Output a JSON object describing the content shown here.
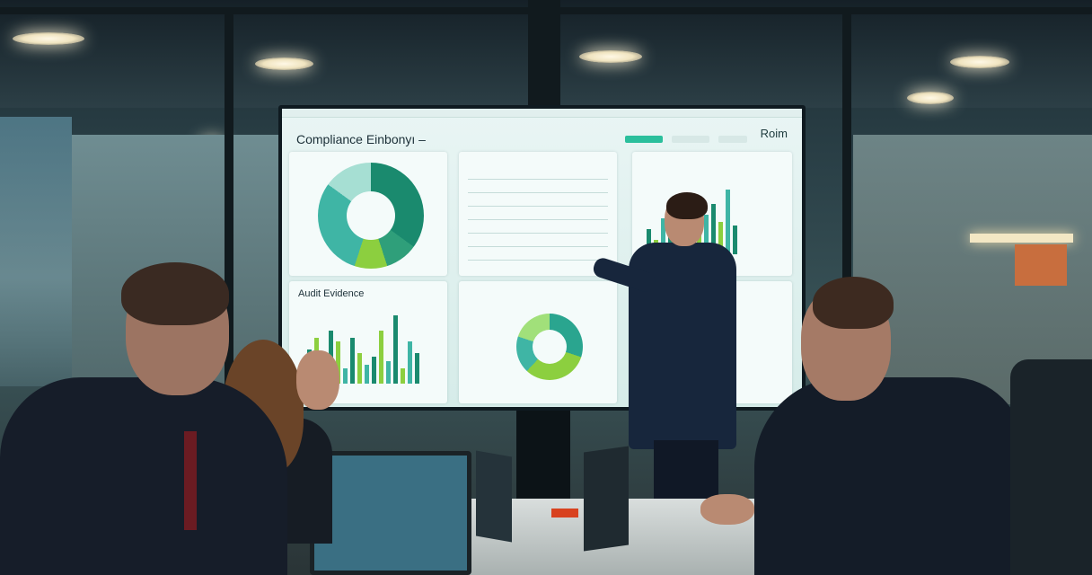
{
  "screen": {
    "title": "Compliance Einbonyı –",
    "brand": "Roim",
    "panel_audit_title": "Audit Evidence",
    "accent_colors": [
      "#1a8a6e",
      "#8ccf3f",
      "#3fb5a5"
    ]
  },
  "scene": {
    "icons": [
      "ceiling-light",
      "dashboard-display",
      "laptop"
    ]
  }
}
